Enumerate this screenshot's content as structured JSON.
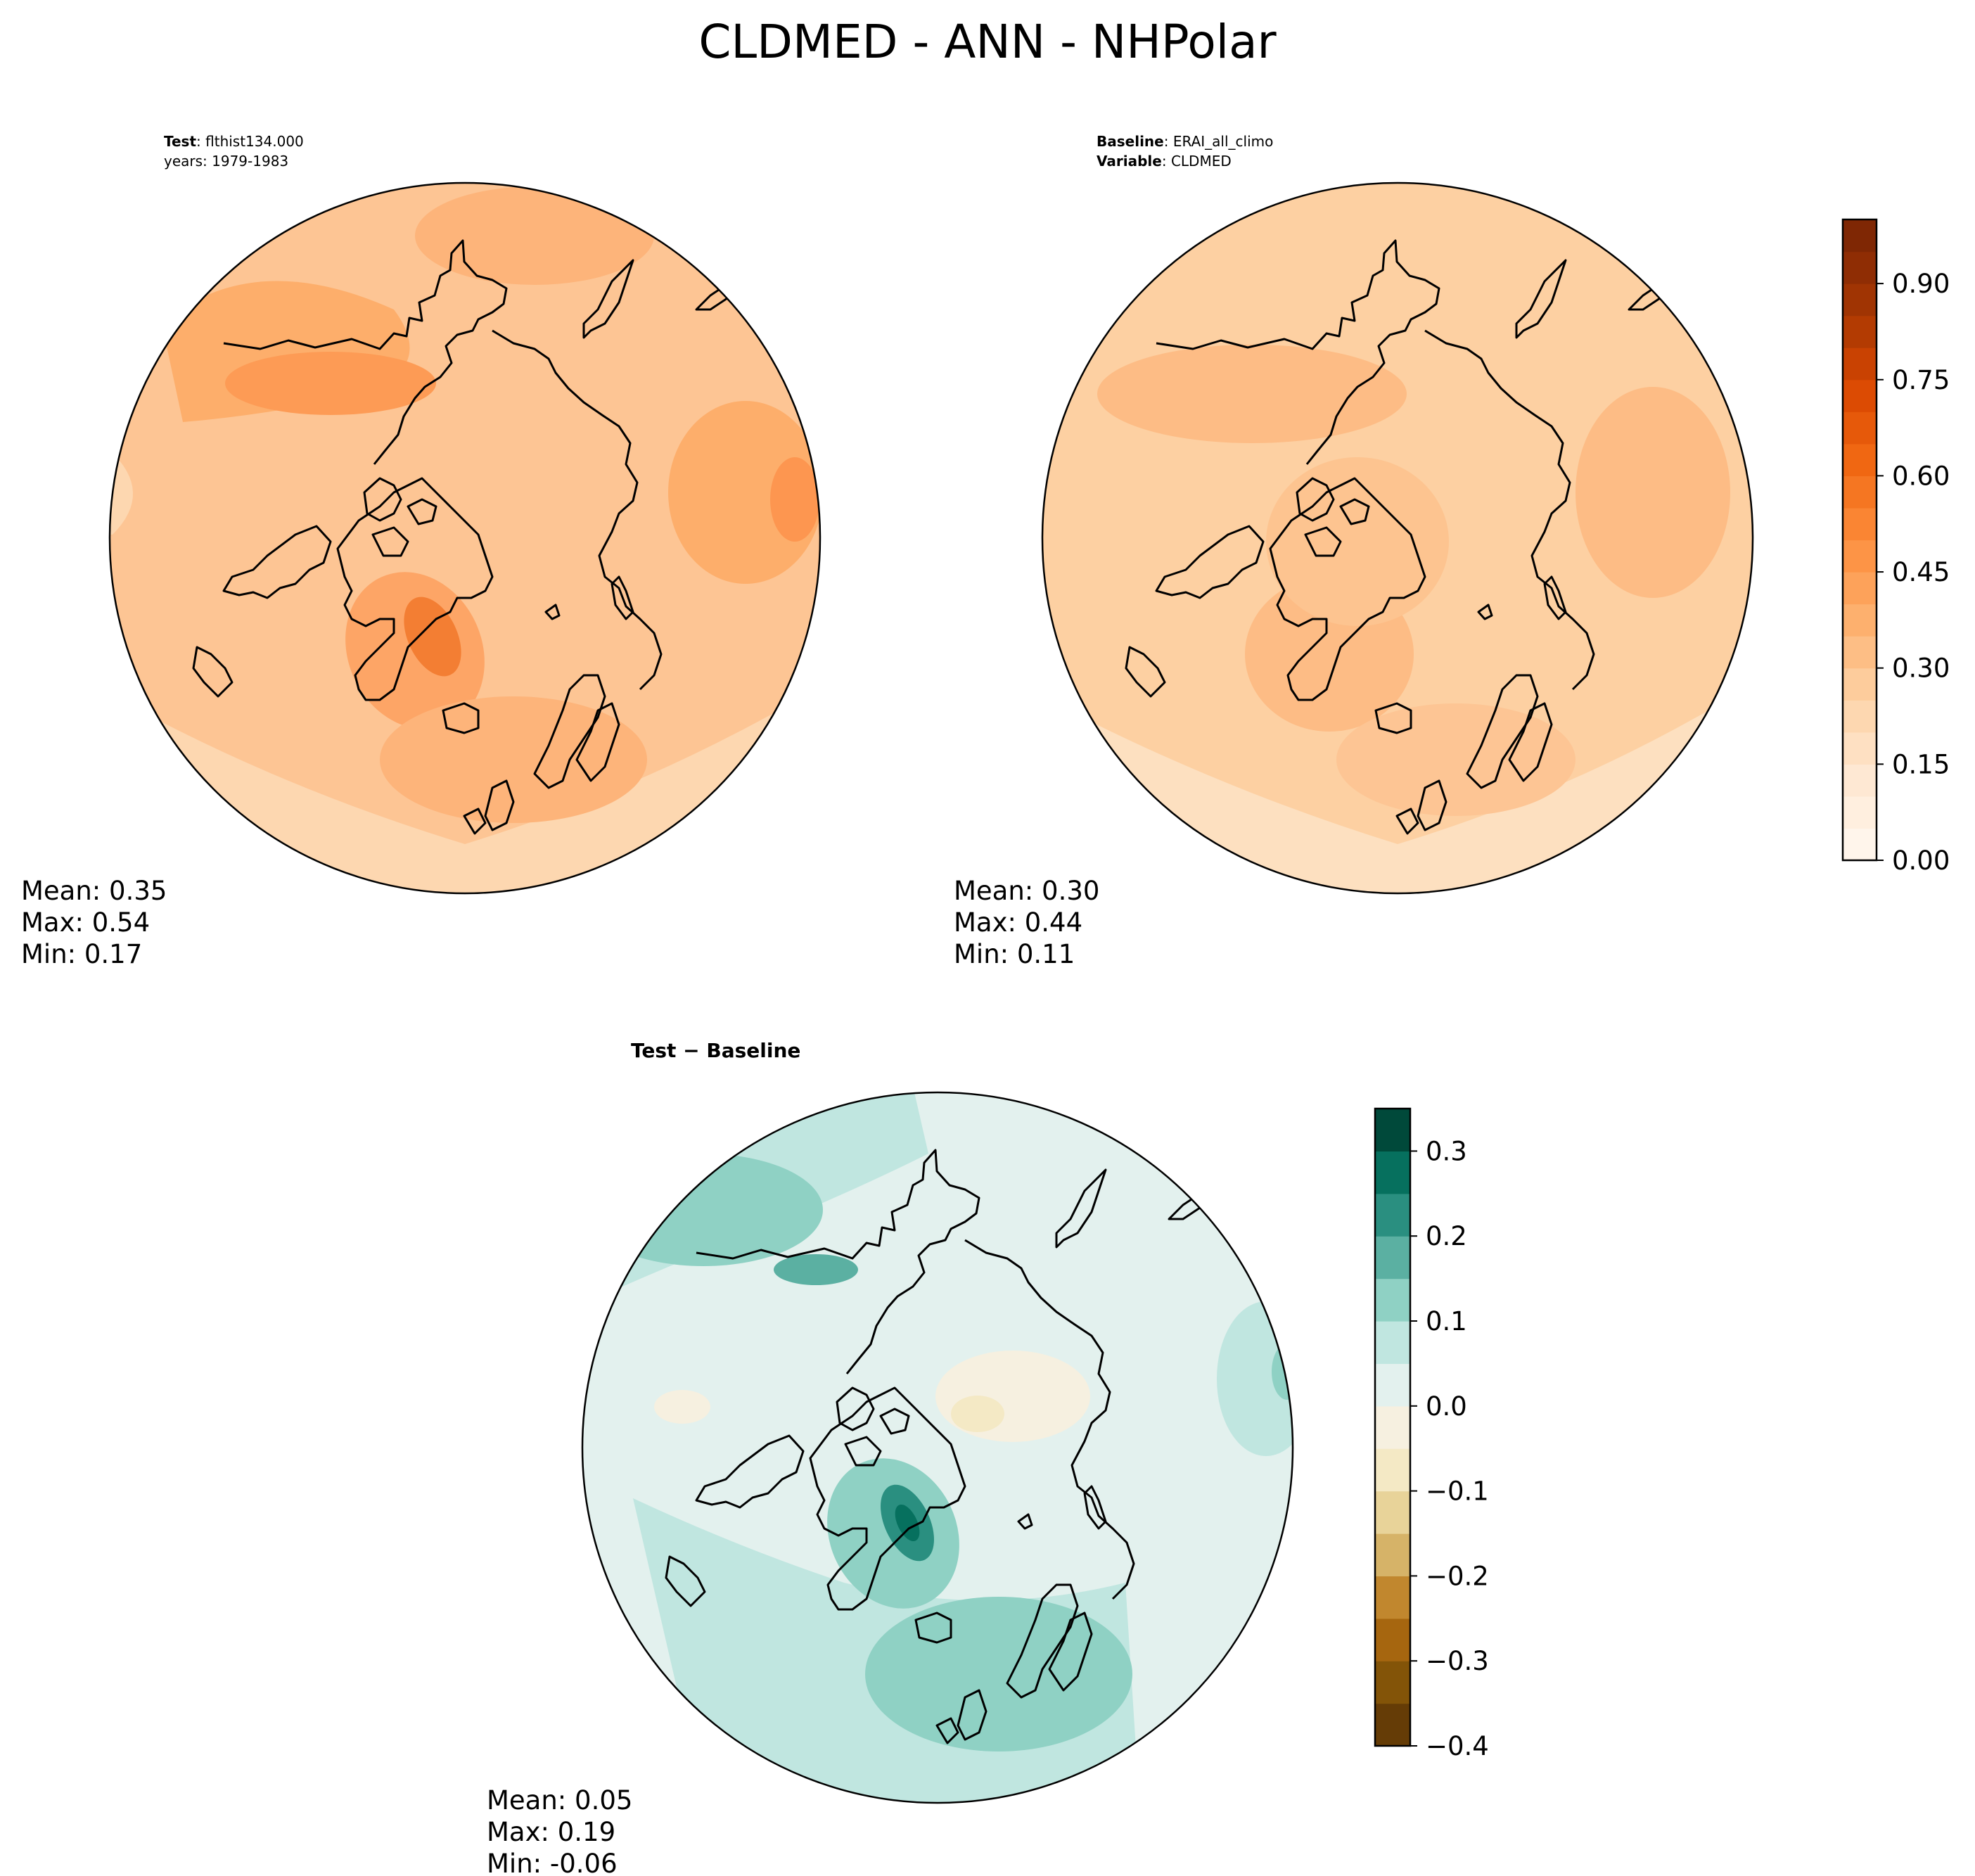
{
  "title": "CLDMED - ANN - NHPolar",
  "chart_data": [
    {
      "type": "heatmap",
      "panel": "test",
      "projection": "north polar stereographic",
      "header": [
        {
          "bold": "Test",
          "sep": ": ",
          "text": "flthist134.000"
        },
        {
          "bold": "",
          "sep": "",
          "text": "years: 1979-1983"
        }
      ],
      "stats": {
        "mean_label": "Mean:  0.35",
        "max_label": "Max:  0.54",
        "min_label": "Min:  0.17"
      },
      "stats_values": {
        "mean": 0.35,
        "max": 0.54,
        "min": 0.17
      },
      "colorscale": "Oranges",
      "range": [
        0.0,
        1.0
      ]
    },
    {
      "type": "heatmap",
      "panel": "baseline",
      "projection": "north polar stereographic",
      "header": [
        {
          "bold": "Baseline",
          "sep": ": ",
          "text": "ERAI_all_climo"
        },
        {
          "bold": "Variable",
          "sep": ": ",
          "text": "CLDMED"
        }
      ],
      "stats": {
        "mean_label": "Mean:  0.30",
        "max_label": "Max:  0.44",
        "min_label": "Min:  0.11"
      },
      "stats_values": {
        "mean": 0.3,
        "max": 0.44,
        "min": 0.11
      },
      "colorscale": "Oranges",
      "range": [
        0.0,
        1.0
      ]
    },
    {
      "type": "heatmap",
      "panel": "difference",
      "projection": "north polar stereographic",
      "header": [
        {
          "bold": "Test − Baseline",
          "sep": "",
          "text": ""
        }
      ],
      "stats": {
        "mean_label": "Mean:  0.05",
        "max_label": "Max:  0.19",
        "min_label": "Min: -0.06"
      },
      "stats_values": {
        "mean": 0.05,
        "max": 0.19,
        "min": -0.06
      },
      "colorscale": "BrBG",
      "range": [
        -0.4,
        0.35
      ]
    }
  ],
  "colorbars": {
    "main": {
      "min": 0.0,
      "max": 1.0,
      "levels": 20,
      "ticks": [
        0.0,
        0.15,
        0.3,
        0.45,
        0.6,
        0.75,
        0.9
      ],
      "tick_labels": [
        "0.00",
        "0.15",
        "0.30",
        "0.45",
        "0.60",
        "0.75",
        "0.90"
      ]
    },
    "diff": {
      "min": -0.4,
      "max": 0.35,
      "step": 0.05,
      "ticks": [
        -0.4,
        -0.3,
        -0.2,
        -0.1,
        0.0,
        0.1,
        0.2,
        0.3
      ],
      "tick_labels": [
        "−0.4",
        "−0.3",
        "−0.2",
        "−0.1",
        "0.0",
        "0.1",
        "0.2",
        "0.3"
      ]
    }
  },
  "colors": {
    "oranges": [
      "#fff5eb",
      "#fee6ce",
      "#fdd0a2",
      "#fdae6b",
      "#fd8d3c",
      "#f16913",
      "#d94801",
      "#a63603",
      "#7f2704"
    ],
    "brbg_neg": [
      "#653c06",
      "#835408",
      "#a6660f",
      "#c1872e",
      "#d6b368",
      "#e8d399",
      "#f4e9c5",
      "#f6f0e0"
    ],
    "brbg_pos": [
      "#e3f1ee",
      "#c0e6e0",
      "#8fd1c4",
      "#5bb0a2",
      "#2a8f80",
      "#06705e",
      "#00493a"
    ],
    "coast": "#000000"
  }
}
